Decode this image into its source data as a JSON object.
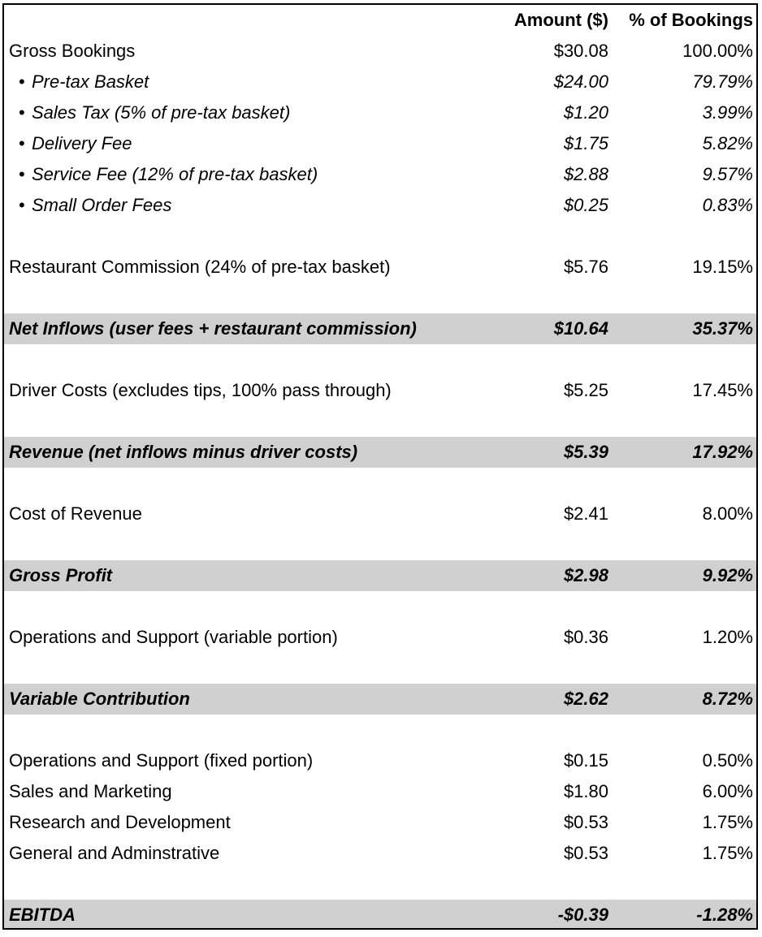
{
  "header": {
    "amount_label": "Amount ($)",
    "pct_label": "% of Bookings"
  },
  "rows": [
    {
      "label": "Gross Bookings",
      "amount": "$30.08",
      "pct": "100.00%"
    },
    {
      "label": "Pre-tax Basket",
      "amount": "$24.00",
      "pct": "79.79%"
    },
    {
      "label": "Sales Tax (5% of pre-tax basket)",
      "amount": "$1.20",
      "pct": "3.99%"
    },
    {
      "label": "Delivery Fee",
      "amount": "$1.75",
      "pct": "5.82%"
    },
    {
      "label": "Service Fee (12% of pre-tax basket)",
      "amount": "$2.88",
      "pct": "9.57%"
    },
    {
      "label": "Small Order Fees",
      "amount": "$0.25",
      "pct": "0.83%"
    },
    {
      "label": "Restaurant Commission (24% of pre-tax basket)",
      "amount": "$5.76",
      "pct": "19.15%"
    },
    {
      "label": "Net Inflows (user fees + restaurant commission)",
      "amount": "$10.64",
      "pct": "35.37%"
    },
    {
      "label": "Driver Costs (excludes tips, 100% pass through)",
      "amount": "$5.25",
      "pct": "17.45%"
    },
    {
      "label": "Revenue (net inflows minus driver costs)",
      "amount": "$5.39",
      "pct": "17.92%"
    },
    {
      "label": "Cost of Revenue",
      "amount": "$2.41",
      "pct": "8.00%"
    },
    {
      "label": "Gross Profit",
      "amount": "$2.98",
      "pct": "9.92%"
    },
    {
      "label": "Operations and Support (variable portion)",
      "amount": "$0.36",
      "pct": "1.20%"
    },
    {
      "label": "Variable Contribution",
      "amount": "$2.62",
      "pct": "8.72%"
    },
    {
      "label": "Operations and Support (fixed portion)",
      "amount": "$0.15",
      "pct": "0.50%"
    },
    {
      "label": "Sales and Marketing",
      "amount": "$1.80",
      "pct": "6.00%"
    },
    {
      "label": "Research and Development",
      "amount": "$0.53",
      "pct": "1.75%"
    },
    {
      "label": "General and Adminstrative",
      "amount": "$0.53",
      "pct": "1.75%"
    },
    {
      "label": "EBITDA",
      "amount": "-$0.39",
      "pct": "-1.28%"
    }
  ]
}
